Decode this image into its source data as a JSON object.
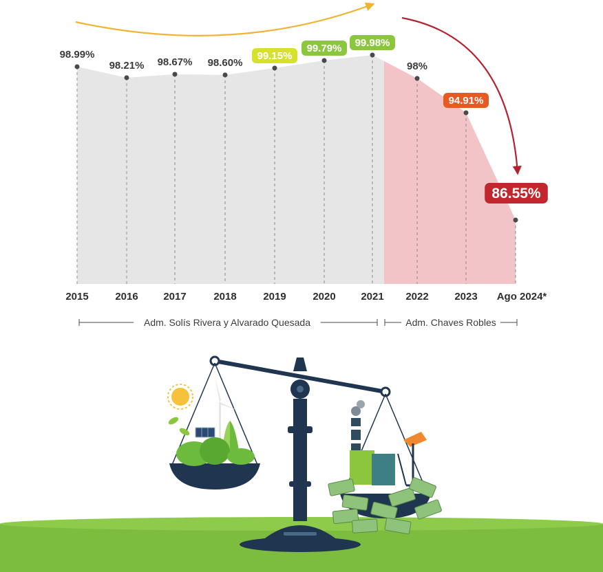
{
  "chart_data": {
    "type": "area",
    "categories": [
      "2015",
      "2016",
      "2017",
      "2018",
      "2019",
      "2020",
      "2021",
      "2022",
      "2023",
      "Ago 2024*"
    ],
    "values": [
      98.99,
      98.21,
      98.67,
      98.6,
      99.15,
      99.79,
      99.98,
      98.0,
      94.91,
      86.55
    ],
    "value_labels": [
      "98.99%",
      "98.21%",
      "98.67%",
      "98.60%",
      "99.15%",
      "99.79%",
      "99.98%",
      "98%",
      "94.91%",
      "86.55%"
    ],
    "highlight_colors": [
      "",
      "",
      "",
      "",
      "#d7e12b",
      "#8cc63f",
      "#8cc63f",
      "",
      "#e85a24",
      "#c1272d"
    ],
    "periods": [
      {
        "label": "Adm. Solís Rivera y Alvarado Quesada",
        "from": 0,
        "to": 6
      },
      {
        "label": "Adm. Chaves Robles",
        "from": 7,
        "to": 9
      }
    ],
    "colors": {
      "area_first_period": "#e6e6e6",
      "area_second_period": "#f2c4c8",
      "up_arrow": "#f2b233",
      "down_arrow": "#b3232f",
      "marker": "#4a4a4a"
    }
  },
  "illustration": {
    "subject": "balance-scale",
    "left_pan": "renewable-energy",
    "right_pan": "fossil-fuels-and-money",
    "colors": {
      "scale": "#1f3550",
      "ground": "#7cbd3f",
      "tree": "#6cbb3c"
    }
  }
}
